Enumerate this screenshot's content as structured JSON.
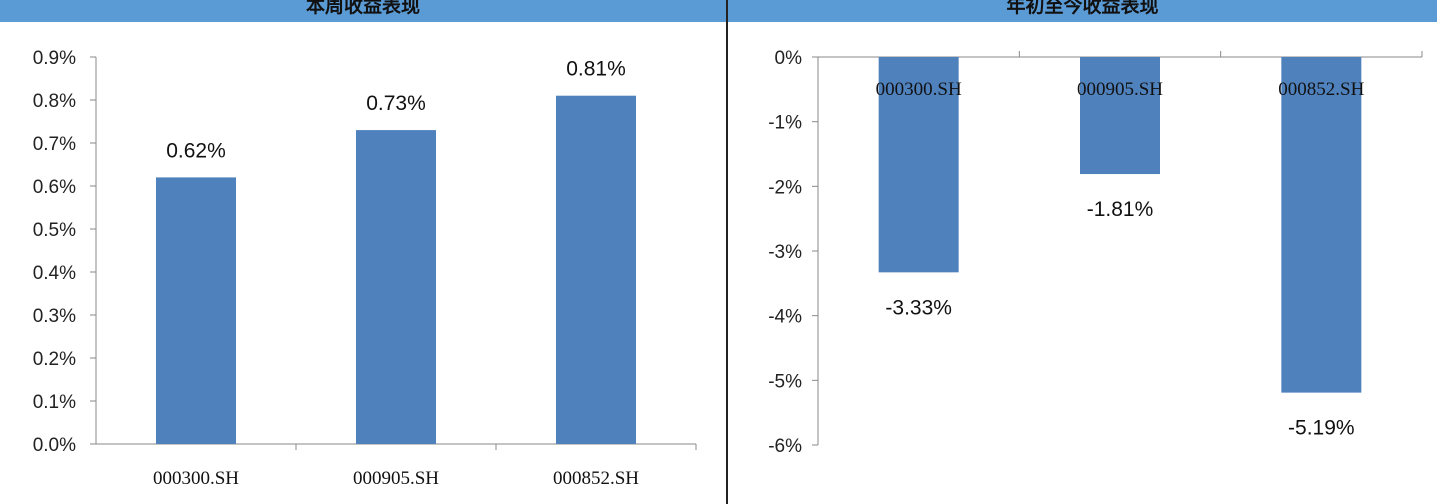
{
  "left_title": "本周收益表现",
  "right_title": "年初至今收益表现",
  "colors": {
    "bar": "#4f81bd",
    "header": "#5b9bd5",
    "axis": "#888888"
  },
  "chart_data": [
    {
      "type": "bar",
      "title": "本周收益表现",
      "categories": [
        "000300.SH",
        "000905.SH",
        "000852.SH"
      ],
      "values": [
        0.62,
        0.73,
        0.81
      ],
      "data_labels": [
        "0.62%",
        "0.73%",
        "0.81%"
      ],
      "ylim": [
        0,
        0.9
      ],
      "yticks": [
        0,
        0.1,
        0.2,
        0.3,
        0.4,
        0.5,
        0.6,
        0.7,
        0.8,
        0.9
      ],
      "ytick_labels": [
        "0.0%",
        "0.1%",
        "0.2%",
        "0.3%",
        "0.4%",
        "0.5%",
        "0.6%",
        "0.7%",
        "0.8%",
        "0.9%"
      ],
      "grid": false,
      "legend": "none"
    },
    {
      "type": "bar",
      "title": "年初至今收益表现",
      "categories": [
        "000300.SH",
        "000905.SH",
        "000852.SH"
      ],
      "values": [
        -3.33,
        -1.81,
        -5.19
      ],
      "data_labels": [
        "-3.33%",
        "-1.81%",
        "-5.19%"
      ],
      "ylim": [
        -6,
        0
      ],
      "yticks": [
        0,
        -1,
        -2,
        -3,
        -4,
        -5,
        -6
      ],
      "ytick_labels": [
        "0%",
        "-1%",
        "-2%",
        "-3%",
        "-4%",
        "-5%",
        "-6%"
      ],
      "grid": false,
      "legend": "none"
    }
  ]
}
